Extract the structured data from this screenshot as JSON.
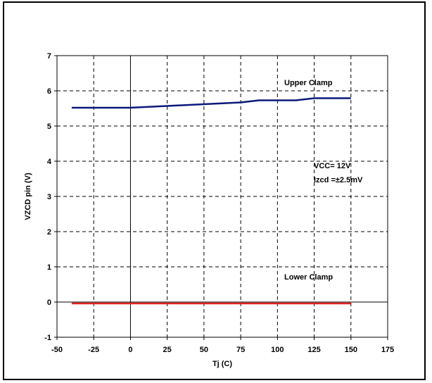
{
  "chart_data": {
    "type": "line",
    "title": "",
    "xlabel": "Tj (C)",
    "ylabel": "VZCD pin (V)",
    "xlim": [
      -50,
      175
    ],
    "ylim": [
      -1,
      7
    ],
    "x_ticks": [
      -50,
      -25,
      0,
      25,
      50,
      75,
      100,
      125,
      150,
      175
    ],
    "y_ticks": [
      -1,
      0,
      1,
      2,
      3,
      4,
      5,
      6,
      7
    ],
    "grid": true,
    "annotations": [
      "Upper Clamp",
      "Lower Clamp",
      "VCC= 12V",
      "Izcd =±2.5mV"
    ],
    "series": [
      {
        "name": "Upper Clamp",
        "color": "#0a1a7a",
        "x": [
          -40,
          -25,
          0,
          25,
          50,
          75,
          87.5,
          100,
          112.5,
          125,
          150
        ],
        "y": [
          5.52,
          5.52,
          5.52,
          5.57,
          5.62,
          5.67,
          5.73,
          5.73,
          5.73,
          5.79,
          5.79
        ]
      },
      {
        "name": "Lower Clamp",
        "color": "#e02020",
        "x": [
          -40,
          -25,
          0,
          25,
          50,
          75,
          100,
          125,
          150
        ],
        "y": [
          -0.04,
          -0.04,
          -0.04,
          -0.04,
          -0.04,
          -0.04,
          -0.04,
          -0.04,
          -0.04
        ]
      }
    ]
  }
}
